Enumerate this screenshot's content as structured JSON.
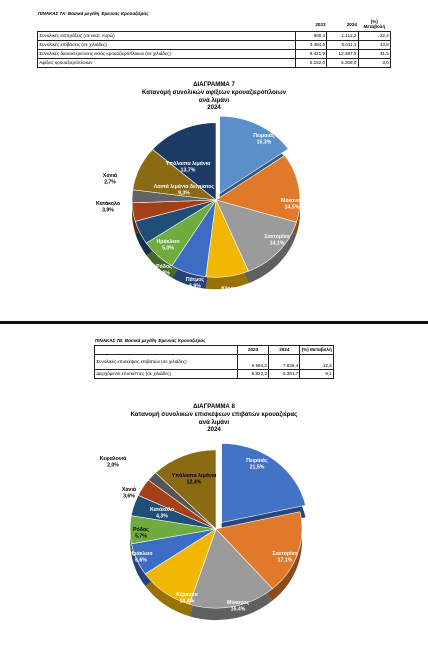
{
  "table_7a": {
    "caption": "ΠΙΝΑΚΑΣ 7Α: Βασικά μεγέθη Έρευνας Κρουαζιέρας",
    "headers": [
      "2023",
      "2024",
      "(%) Μεταβολή"
    ],
    "rows": [
      {
        "label": "Συνολικές εισπράξεις (σε εκατ. ευρώ)",
        "v2023": "908,4",
        "v2024": "1.112,2",
        "change": "22,4"
      },
      {
        "label": "Συνολικές επιβάσεις (σε χιλιάδες)",
        "v2023": "3.484,5",
        "v2024": "5.011,1",
        "change": "43,8"
      },
      {
        "label": "Συνολικές διανυκτερεύσεις εκτός κρουαζιερόπλοιων (σε χιλιάδες)",
        "v2023": "9.421,9",
        "v2024": "12.387,5",
        "change": "31,5"
      },
      {
        "label": "Αφίξεις κρουαζιερόπλοιων",
        "v2023": "5.152,0",
        "v2024": "5.308,0",
        "change": "3,0"
      }
    ]
  },
  "table_7b": {
    "caption": "ΠΙΝΑΚΑΣ 7Β: Βασικά μεγέθη Έρευνας Κρουαζιέρας",
    "headers": [
      "2023",
      "2024",
      "(%) Μεταβολή"
    ],
    "rows": [
      {
        "label": "Συνολικές επισκέψεις επιβατών (σε χιλιάδες)",
        "v2023": "6.964,2",
        "v2024": "7.826,4",
        "change": "12,4"
      },
      {
        "label": "Διερχόμενοι επισκέπτες (σε χιλιάδες)",
        "v2023": "5.822,3",
        "v2024": "6.351,7",
        "change": "9,1"
      }
    ]
  },
  "chart_data": [
    {
      "type": "pie",
      "title": "ΔΙΑΓΡΑΜΜΑ 7",
      "subtitle": "Κατανομή συνολικών αφίξεων κρουαζιερόπλοιων ανά λιμάνι 2024",
      "subtitle_lines": [
        "Κατανομή συνολικών αφίξεων κρουαζιερόπλοιων",
        "ανά λιμάνι",
        "2024"
      ],
      "slices": [
        {
          "name": "Πειραιάς",
          "value": 15.3,
          "label": "15,3%",
          "color": "#5a8fcb",
          "exploded": true
        },
        {
          "name": "Μύκονος",
          "value": 14.5,
          "label": "14,5%",
          "color": "#e07a2a"
        },
        {
          "name": "Σαντορίνη",
          "value": 14.1,
          "label": "14,1%",
          "color": "#9b9b9b"
        },
        {
          "name": "Κέρκυρα",
          "value": 8.3,
          "label": "8,3%",
          "color": "#f2b705"
        },
        {
          "name": "Πάτμος",
          "value": 6.9,
          "label": "6,9%",
          "color": "#3d6cc3"
        },
        {
          "name": "Ρόδος",
          "value": 6.8,
          "label": "6,8%",
          "color": "#6fab3f"
        },
        {
          "name": "Ηράκλειο",
          "value": 5.0,
          "label": "5,0%",
          "color": "#1f4e79"
        },
        {
          "name": "Κατάκολο",
          "value": 3.9,
          "label": "3,9%",
          "color": "#a53f15"
        },
        {
          "name": "Χανιά",
          "value": 2.7,
          "label": "2,7%",
          "color": "#636363"
        },
        {
          "name": "Λοιπά λιμάνια δείγματος",
          "value": 9.3,
          "label": "9,3%",
          "color": "#8a6a12"
        },
        {
          "name": "Υπόλοιπα λιμάνια",
          "value": 13.7,
          "label": "13,7%",
          "color": "#1c3a63"
        }
      ]
    },
    {
      "type": "pie",
      "title": "ΔΙΑΓΡΑΜΜΑ 8",
      "subtitle": "Κατανομή συνολικών επισκέψεων επιβατών κρουαζιέρας ανά λιμάνι 2024",
      "subtitle_lines": [
        "Κατανομή συνολικών επισκέψεων επιβατών κρουαζιέρας",
        "ανά λιμάνι",
        "2024"
      ],
      "slices": [
        {
          "name": "Πειραιάς",
          "value": 21.5,
          "label": "21,5%",
          "color": "#4472c4",
          "exploded": true
        },
        {
          "name": "Σαντορίνη",
          "value": 17.1,
          "label": "17,1%",
          "color": "#e07a2a"
        },
        {
          "name": "Μύκονος",
          "value": 16.4,
          "label": "16,4%",
          "color": "#9b9b9b"
        },
        {
          "name": "Κέρκυρα",
          "value": 10.4,
          "label": "10,4%",
          "color": "#f2b705"
        },
        {
          "name": "Ηράκλειο",
          "value": 6.6,
          "label": "6,6%",
          "color": "#3d6cc3"
        },
        {
          "name": "Ρόδος",
          "value": 5.7,
          "label": "5,7%",
          "color": "#6fab3f"
        },
        {
          "name": "Κατάκολο",
          "value": 4.3,
          "label": "4,3%",
          "color": "#1f4e79"
        },
        {
          "name": "Χανιά",
          "value": 3.6,
          "label": "3,6%",
          "color": "#a53f15"
        },
        {
          "name": "Κεφαλονιά",
          "value": 2.0,
          "label": "2,0%",
          "color": "#555555"
        },
        {
          "name": "Υπόλοιπα λιμάνια",
          "value": 12.4,
          "label": "12,4%",
          "color": "#8a6a12"
        }
      ]
    }
  ]
}
